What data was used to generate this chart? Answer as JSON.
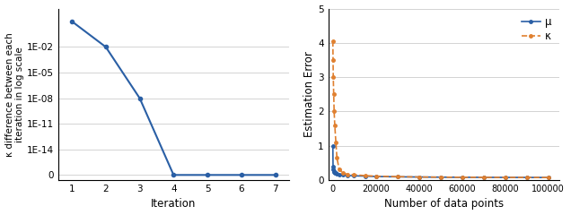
{
  "left_plot": {
    "x": [
      1,
      2,
      3,
      4,
      5,
      6,
      7
    ],
    "y_display": [
      6,
      5,
      3,
      0,
      0,
      0,
      0
    ],
    "xlabel": "Iteration",
    "ylabel": "κ difference between each\niteration in log scale",
    "color": "#2a5fa5",
    "ytick_positions": [
      0,
      1,
      2,
      3,
      4,
      5,
      6
    ],
    "ytick_labels": [
      "0",
      "1E-14",
      "1E-11",
      "1E-08",
      "1E-05",
      "1E-02",
      ""
    ],
    "xticks": [
      1,
      2,
      3,
      4,
      5,
      6,
      7
    ],
    "xlim": [
      0.6,
      7.4
    ],
    "ylim": [
      -0.2,
      6.5
    ],
    "grid_positions": [
      0,
      1,
      2,
      3,
      4,
      5
    ],
    "marker": "o",
    "markersize": 3,
    "linewidth": 1.5
  },
  "right_plot": {
    "x_mu": [
      100,
      200,
      300,
      500,
      700,
      1000,
      1500,
      2000,
      3000,
      5000,
      7000,
      10000,
      15000,
      20000,
      30000,
      40000,
      50000,
      60000,
      70000,
      80000,
      90000,
      100000
    ],
    "y_mu": [
      1.0,
      0.38,
      0.32,
      0.27,
      0.24,
      0.22,
      0.2,
      0.185,
      0.165,
      0.145,
      0.135,
      0.125,
      0.115,
      0.105,
      0.095,
      0.09,
      0.085,
      0.082,
      0.08,
      0.078,
      0.077,
      0.075
    ],
    "x_kappa": [
      100,
      200,
      300,
      500,
      700,
      1000,
      1500,
      2000,
      3000,
      5000,
      7000,
      10000,
      15000,
      20000,
      30000,
      40000,
      50000,
      60000,
      70000,
      80000,
      90000,
      100000
    ],
    "y_kappa": [
      4.05,
      3.5,
      3.0,
      2.5,
      2.0,
      1.6,
      1.1,
      0.65,
      0.32,
      0.2,
      0.17,
      0.155,
      0.13,
      0.115,
      0.1,
      0.09,
      0.085,
      0.082,
      0.08,
      0.078,
      0.077,
      0.075
    ],
    "xlabel": "Number of data points",
    "ylabel": "Estimation Error",
    "color_mu": "#2a5fa5",
    "color_kappa": "#e08030",
    "ylim": [
      0,
      5
    ],
    "xlim": [
      -2000,
      105000
    ],
    "xticks": [
      0,
      20000,
      40000,
      60000,
      80000,
      100000
    ],
    "xtick_labels": [
      "0",
      "20000",
      "40000",
      "60000",
      "80000",
      "100000"
    ],
    "yticks": [
      0,
      1,
      2,
      3,
      4,
      5
    ],
    "marker": "o",
    "markersize": 2.5,
    "legend_mu": "μ",
    "legend_kappa": "κ"
  },
  "figsize": [
    6.36,
    2.4
  ],
  "dpi": 100
}
